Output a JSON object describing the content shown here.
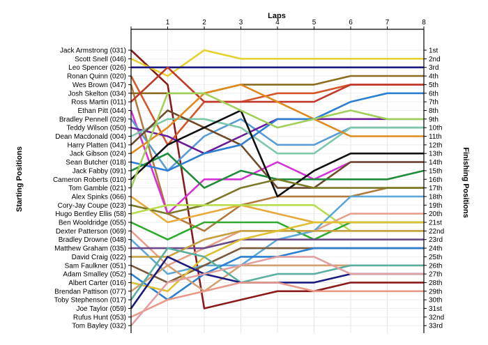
{
  "chart_data": {
    "type": "line",
    "title": "Laps",
    "xlabel": "Laps",
    "ylabel_left": "Starting Positions",
    "ylabel_right": "Finishing Positions",
    "x": [
      0,
      1,
      2,
      3,
      4,
      5,
      6,
      7,
      8
    ],
    "x_tick_labels": [
      "1",
      "2",
      "3",
      "4",
      "5",
      "6",
      "7",
      "8"
    ],
    "y_range": [
      1,
      33
    ],
    "y_inverted": true,
    "grid": true,
    "drivers": [
      "Jack Armstrong (031)",
      "Scott Snell (046)",
      "Leo Spencer (026)",
      "Ronan Quinn (020)",
      "Wes Brown (047)",
      "Josh Skelton (034)",
      "Ross Martin (011)",
      "Ethan Pitt (044)",
      "Bradley Pennell (029)",
      "Teddy Wilson (050)",
      "Dean Macdonald (004)",
      "Harry Platten (041)",
      "Jack Gibson (024)",
      "Sean Butcher (018)",
      "Jack Fabby (091)",
      "Cameron Roberts (010)",
      "Tom Gamble (021)",
      "Alex Spinks (066)",
      "Cory-Jay Coupe (023)",
      "Hugo Bentley Ellis (58)",
      "Ben Wooldridge (055)",
      "Dexter Patterson (069)",
      "Bradley Drowne (048)",
      "Matthew Graham (035)",
      "David Craig (022)",
      "Sam Faulkner (051)",
      "Adam Smalley (052)",
      "Albert Carter (016)",
      "Brendan Pattison (077)",
      "Toby Stephenson (017)",
      "Joe Taylor (059)",
      "Rufus Hunt (053)",
      "Tom Bayley (032)"
    ],
    "finishing_positions": [
      "1st",
      "2nd",
      "3rd",
      "4th",
      "5th",
      "6th",
      "7th",
      "8th",
      "9th",
      "10th",
      "11th",
      "12th",
      "13th",
      "14th",
      "15th",
      "16th",
      "17th",
      "18th",
      "19th",
      "20th",
      "21st",
      "22nd",
      "23rd",
      "24th",
      "25th",
      "26th",
      "27th",
      "28th",
      "29th",
      "30th",
      "31st",
      "32nd",
      "33rd"
    ],
    "series": [
      {
        "color": "#8b1a1a",
        "values": [
          1,
          5,
          31,
          30,
          29,
          29,
          28,
          28,
          28
        ]
      },
      {
        "color": "#e6d22e",
        "values": [
          2,
          4,
          1,
          2,
          2,
          2,
          2,
          2,
          2
        ]
      },
      {
        "color": "#1a1a80",
        "values": [
          3,
          3,
          3,
          3,
          3,
          3,
          3,
          3,
          3
        ]
      },
      {
        "color": "#d4562a",
        "values": [
          4,
          12,
          7,
          7,
          6,
          6,
          5,
          5,
          5
        ]
      },
      {
        "color": "#b07b3c",
        "values": [
          5,
          20,
          22,
          19,
          18,
          18,
          18,
          17,
          17
        ]
      },
      {
        "color": "#8c6d1f",
        "values": [
          6,
          6,
          6,
          5,
          5,
          5,
          4,
          4,
          4
        ]
      },
      {
        "color": "#c0392b",
        "values": [
          7,
          3,
          7,
          7,
          7,
          7,
          5,
          5,
          5
        ]
      },
      {
        "color": "#d633d6",
        "values": [
          8,
          20,
          16,
          16,
          14,
          16,
          14,
          14,
          14
        ]
      },
      {
        "color": "#5a9bd4",
        "values": [
          9,
          15,
          11,
          9,
          12,
          12,
          10,
          10,
          10
        ]
      },
      {
        "color": "#6a1b9a",
        "values": [
          10,
          11,
          13,
          11,
          9,
          9,
          9,
          9,
          9
        ]
      },
      {
        "color": "#7dc8a8",
        "values": [
          11,
          9,
          9,
          10,
          13,
          13,
          10,
          10,
          10
        ]
      },
      {
        "color": "#6e4a2a",
        "values": [
          12,
          8,
          10,
          12,
          17,
          17,
          14,
          14,
          14
        ]
      },
      {
        "color": "#e08a1e",
        "values": [
          13,
          10,
          6,
          5,
          7,
          9,
          11,
          11,
          11
        ]
      },
      {
        "color": "#2c7fd1",
        "values": [
          14,
          15,
          13,
          12,
          9,
          9,
          7,
          6,
          6
        ]
      },
      {
        "color": "#1e8c3a",
        "values": [
          15,
          13,
          17,
          15,
          16,
          16,
          16,
          16,
          15
        ]
      },
      {
        "color": "#0f0f0f",
        "values": [
          16,
          12,
          10,
          8,
          18,
          15,
          13,
          13,
          13
        ]
      },
      {
        "color": "#a0d05a",
        "values": [
          17,
          6,
          6,
          8,
          10,
          9,
          8,
          9,
          9
        ]
      },
      {
        "color": "#e6a93a",
        "values": [
          18,
          21,
          20,
          19,
          20,
          21,
          21,
          21,
          21
        ]
      },
      {
        "color": "#7a7a28",
        "values": [
          19,
          20,
          19,
          17,
          16,
          17,
          17,
          17,
          17
        ]
      },
      {
        "color": "#b8dc4e",
        "values": [
          20,
          19,
          19,
          19,
          19,
          19,
          22,
          22,
          22
        ]
      },
      {
        "color": "#2eaa2e",
        "values": [
          21,
          23,
          21,
          21,
          21,
          23,
          21,
          21,
          21
        ]
      },
      {
        "color": "#e6a08a",
        "values": [
          22,
          26,
          24,
          22,
          22,
          22,
          20,
          20,
          20
        ]
      },
      {
        "color": "#5ca8d6",
        "values": [
          23,
          27,
          26,
          26,
          23,
          22,
          18,
          18,
          18
        ]
      },
      {
        "color": "#6a4a8a",
        "values": [
          24,
          24,
          24,
          23,
          23,
          23,
          23,
          23,
          23
        ]
      },
      {
        "color": "#c8a040",
        "values": [
          25,
          25,
          23,
          22,
          22,
          22,
          22,
          22,
          22
        ]
      },
      {
        "color": "#7a5a3a",
        "values": [
          26,
          28,
          26,
          24,
          24,
          24,
          24,
          24,
          24
        ]
      },
      {
        "color": "#2a7fd1",
        "values": [
          27,
          30,
          27,
          25,
          25,
          24,
          24,
          24,
          24
        ]
      },
      {
        "color": "#e0c030",
        "values": [
          28,
          29,
          25,
          23,
          22,
          21,
          21,
          21,
          21
        ]
      },
      {
        "color": "#d4a070",
        "values": [
          29,
          26,
          29,
          26,
          26,
          26,
          26,
          26,
          26
        ]
      },
      {
        "color": "#5ab0a0",
        "values": [
          30,
          24,
          25,
          28,
          27,
          27,
          26,
          26,
          26
        ]
      },
      {
        "color": "#1a1a80",
        "values": [
          31,
          25,
          27,
          28,
          28,
          28,
          27,
          27,
          27
        ]
      },
      {
        "color": "#e89a8a",
        "values": [
          32,
          30,
          29,
          28,
          28,
          29,
          29,
          29,
          29
        ]
      },
      {
        "color": "#e0a0a0",
        "values": [
          33,
          28,
          27,
          26,
          25,
          25,
          27,
          27,
          27
        ]
      }
    ]
  }
}
